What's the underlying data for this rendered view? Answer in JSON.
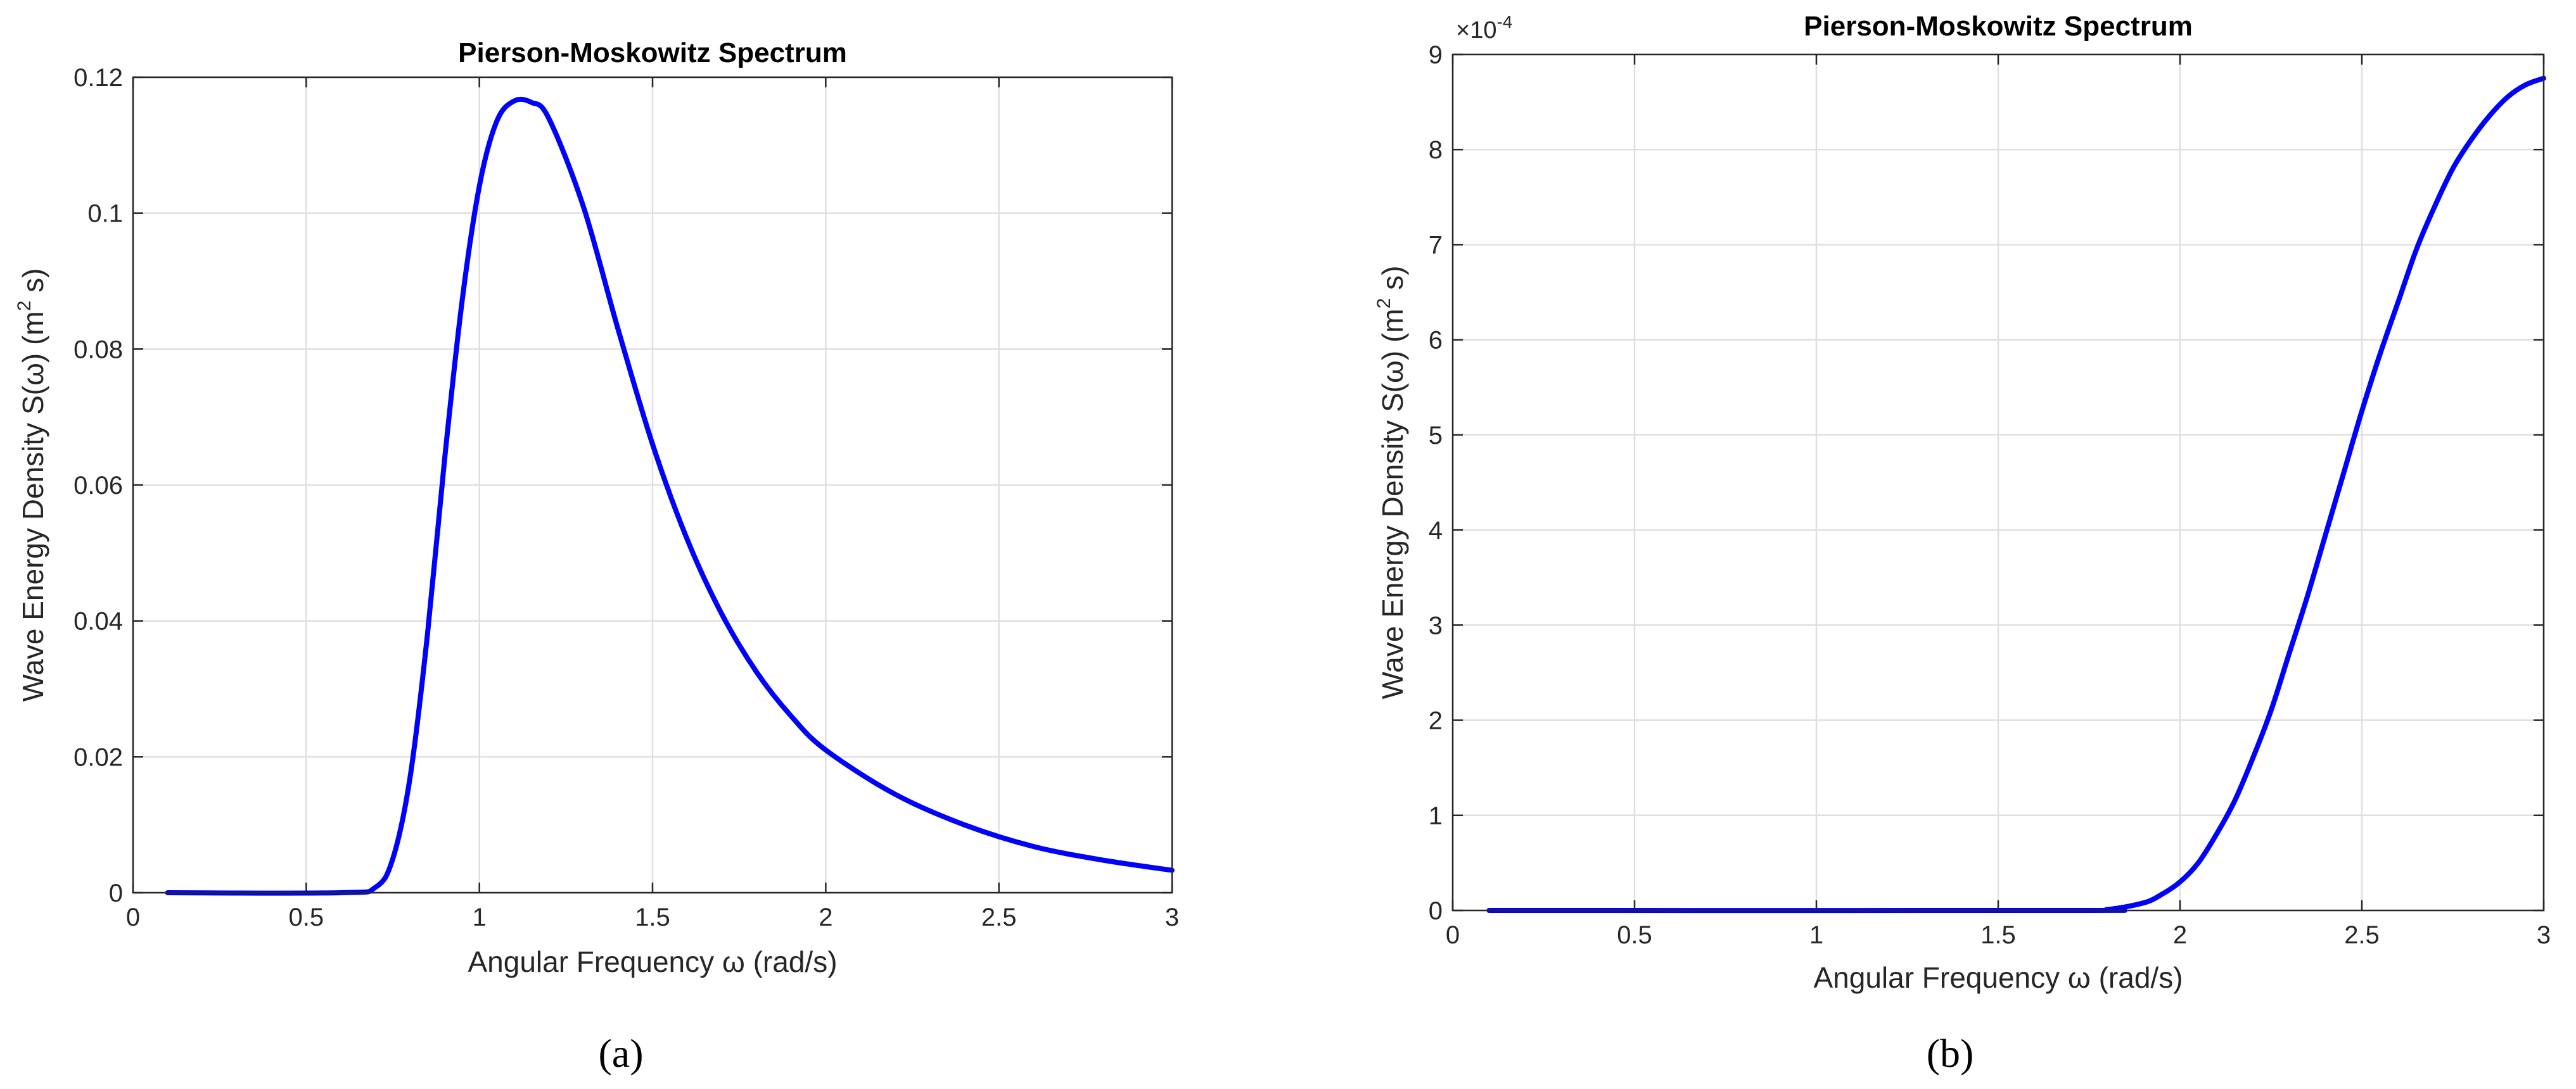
{
  "colors": {
    "curve": "#0000ff",
    "grid": "#dfdfdf",
    "axis": "#262626",
    "background": "#ffffff"
  },
  "chart_data": [
    {
      "type": "line",
      "panel": "(a)",
      "title": "Pierson-Moskowitz Spectrum",
      "xlabel": "Angular  Frequency  ω  (rad/s)",
      "ylabel_main": "Wave  Energy  Density  S(ω)  (m",
      "ylabel_sup": "2",
      "ylabel_tail": "  s)",
      "xlim": [
        0,
        3
      ],
      "ylim": [
        0,
        0.12
      ],
      "xticks": [
        0,
        0.5,
        1,
        1.5,
        2,
        2.5,
        3
      ],
      "xtick_labels": [
        "0",
        "0.5",
        "1",
        "1.5",
        "2",
        "2.5",
        "3"
      ],
      "yticks": [
        0,
        0.02,
        0.04,
        0.06,
        0.08,
        0.1,
        0.12
      ],
      "ytick_labels": [
        "0",
        "0.02",
        "0.04",
        "0.06",
        "0.08",
        "0.1",
        "0.12"
      ],
      "grid": true,
      "x": [
        0.1,
        0.6,
        0.7,
        0.75,
        0.8,
        0.85,
        0.9,
        0.95,
        1.0,
        1.05,
        1.1,
        1.15,
        1.2,
        1.3,
        1.4,
        1.5,
        1.6,
        1.7,
        1.8,
        1.9,
        2.0,
        2.2,
        2.4,
        2.6,
        2.8,
        3.0
      ],
      "y": [
        0,
        0,
        0.0008,
        0.005,
        0.017,
        0.038,
        0.064,
        0.087,
        0.104,
        0.1135,
        0.1165,
        0.1163,
        0.114,
        0.101,
        0.083,
        0.066,
        0.052,
        0.041,
        0.0325,
        0.026,
        0.021,
        0.0145,
        0.01,
        0.0068,
        0.0048,
        0.0033
      ]
    },
    {
      "type": "line",
      "panel": "(b)",
      "title": "Pierson-Moskowitz Spectrum",
      "xlabel": "Angular  Frequency  ω  (rad/s)",
      "ylabel_main": "Wave  Energy  Density  S(ω)  (m",
      "ylabel_sup": "2",
      "ylabel_tail": "  s)",
      "exponent_base": "×10",
      "exponent_power": "-4",
      "xlim": [
        0,
        3
      ],
      "ylim": [
        0,
        9
      ],
      "xticks": [
        0,
        0.5,
        1,
        1.5,
        2,
        2.5,
        3
      ],
      "xtick_labels": [
        "0",
        "0.5",
        "1",
        "1.5",
        "2",
        "2.5",
        "3"
      ],
      "yticks": [
        0,
        1,
        2,
        3,
        4,
        5,
        6,
        7,
        8,
        9
      ],
      "ytick_labels": [
        "0",
        "1",
        "2",
        "3",
        "4",
        "5",
        "6",
        "7",
        "8",
        "9"
      ],
      "grid": true,
      "x": [
        0.1,
        1.7,
        1.8,
        1.9,
        1.95,
        2.0,
        2.05,
        2.1,
        2.15,
        2.2,
        2.25,
        2.3,
        2.35,
        2.4,
        2.45,
        2.5,
        2.55,
        2.6,
        2.65,
        2.7,
        2.75,
        2.8,
        2.85,
        2.9,
        2.95,
        3.0
      ],
      "y": [
        0,
        0,
        0.01,
        0.08,
        0.17,
        0.3,
        0.5,
        0.8,
        1.15,
        1.6,
        2.1,
        2.7,
        3.3,
        3.95,
        4.6,
        5.25,
        5.85,
        6.4,
        6.95,
        7.4,
        7.8,
        8.1,
        8.35,
        8.55,
        8.68,
        8.75
      ]
    }
  ]
}
